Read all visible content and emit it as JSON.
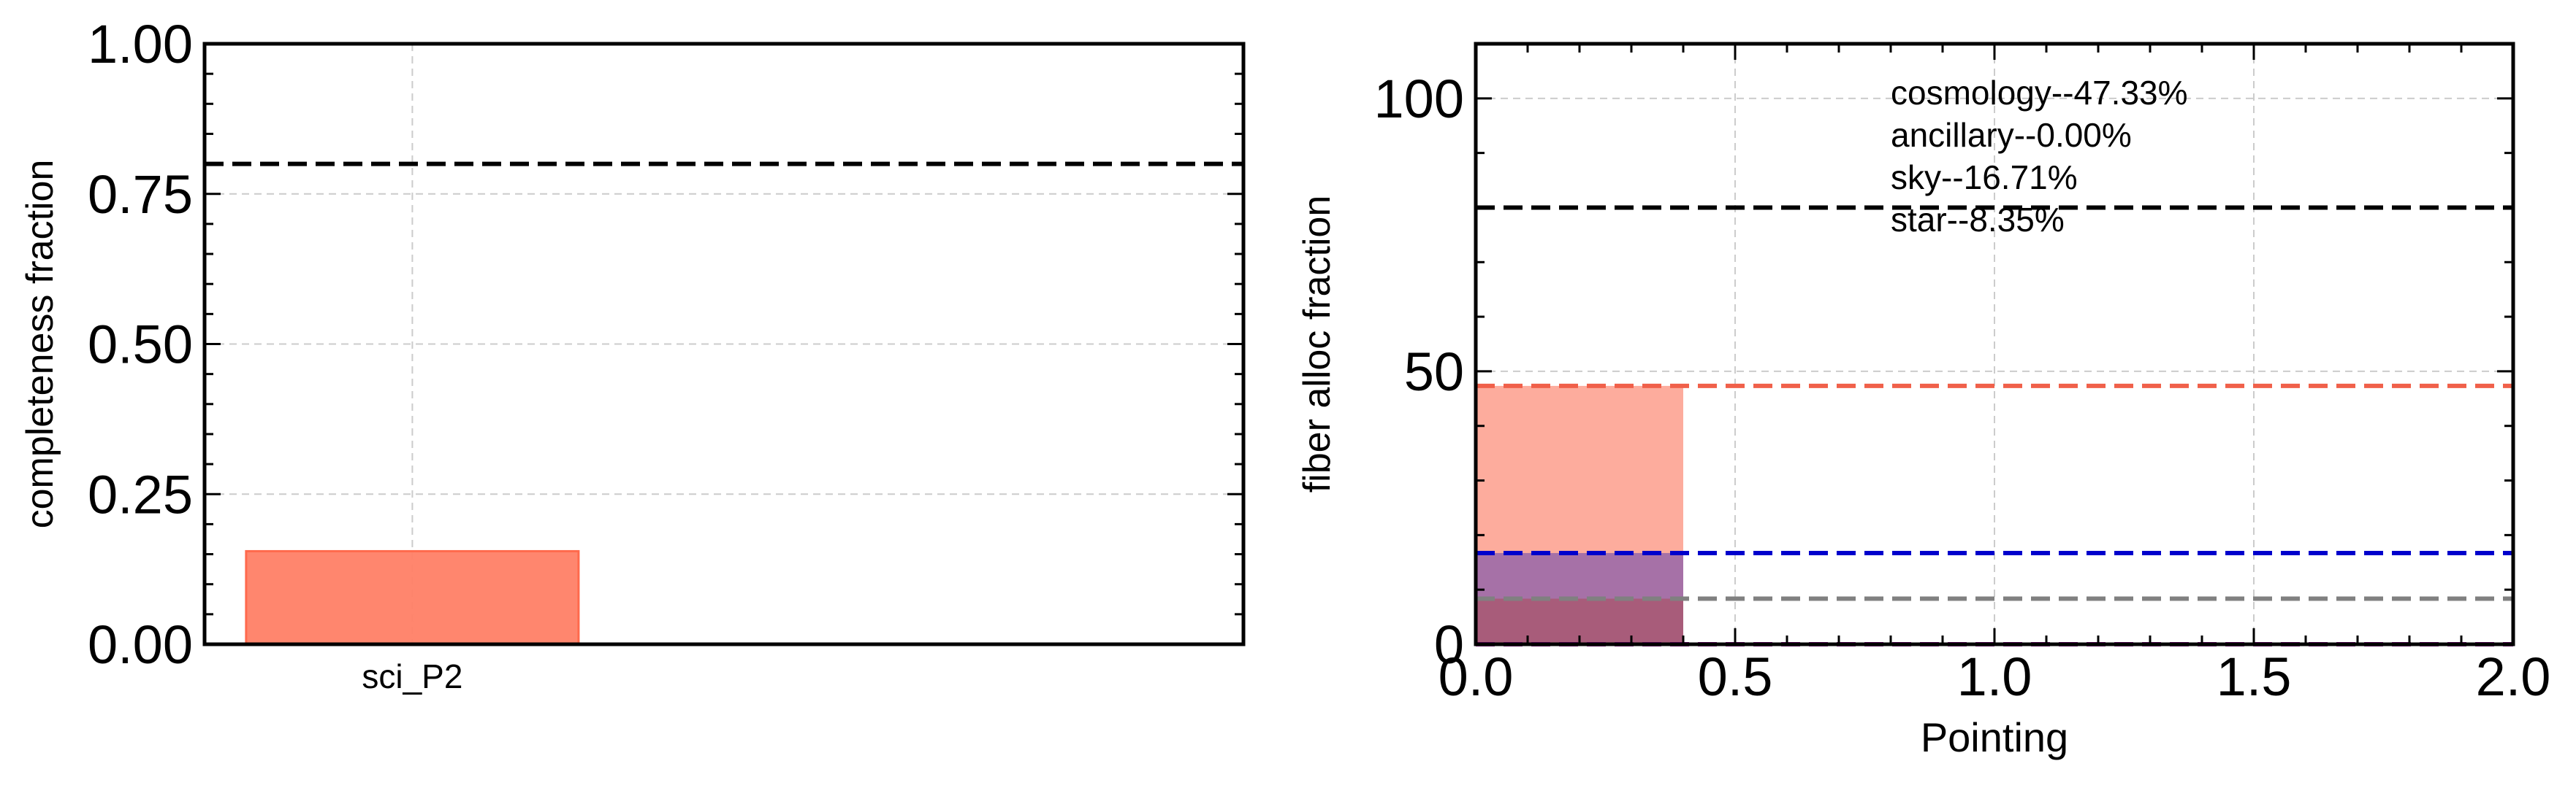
{
  "chart_data": [
    {
      "type": "bar",
      "categories": [
        "sci_P2"
      ],
      "values": [
        0.155
      ],
      "bar_color": "#ff7f66",
      "xlabel": "",
      "ylabel": "completeness fraction",
      "ylim": [
        0,
        1
      ],
      "yticks": [
        0,
        0.25,
        0.5,
        0.75,
        1.0
      ],
      "ytick_labels": [
        "0.00",
        "0.25",
        "0.50",
        "0.75",
        "1.00"
      ],
      "reference_line": {
        "y": 0.8,
        "color": "#000000",
        "style": "dashed"
      },
      "grid": true
    },
    {
      "type": "bar",
      "xlabel": "Pointing",
      "ylabel": "fiber alloc fraction",
      "xlim": [
        0,
        2
      ],
      "ylim": [
        0,
        110
      ],
      "xticks": [
        0,
        0.5,
        1.0,
        1.5,
        2.0
      ],
      "xtick_labels": [
        "0.0",
        "0.5",
        "1.0",
        "1.5",
        "2.0"
      ],
      "yticks": [
        0,
        50,
        100
      ],
      "ytick_labels": [
        "0",
        "50",
        "100"
      ],
      "grid": true,
      "reference_line": {
        "y": 80,
        "color": "#000000",
        "style": "dashed"
      },
      "series": [
        {
          "name": "cosmology",
          "label": "cosmology--47.33%",
          "value": 47.33,
          "color": "#f0604a",
          "fill": "#fda392"
        },
        {
          "name": "ancillary",
          "label": "ancillary--0.00%",
          "value": 0.0,
          "color": "#800080",
          "fill": "#800080"
        },
        {
          "name": "sky",
          "label": "sky--16.71%",
          "value": 16.71,
          "color": "#0000cc",
          "fill": "#9c6aa8"
        },
        {
          "name": "star",
          "label": "star--8.35%",
          "value": 8.35,
          "color": "#808080",
          "fill": "#a85a75"
        }
      ],
      "bar_x_range": [
        0,
        0.4
      ]
    }
  ]
}
